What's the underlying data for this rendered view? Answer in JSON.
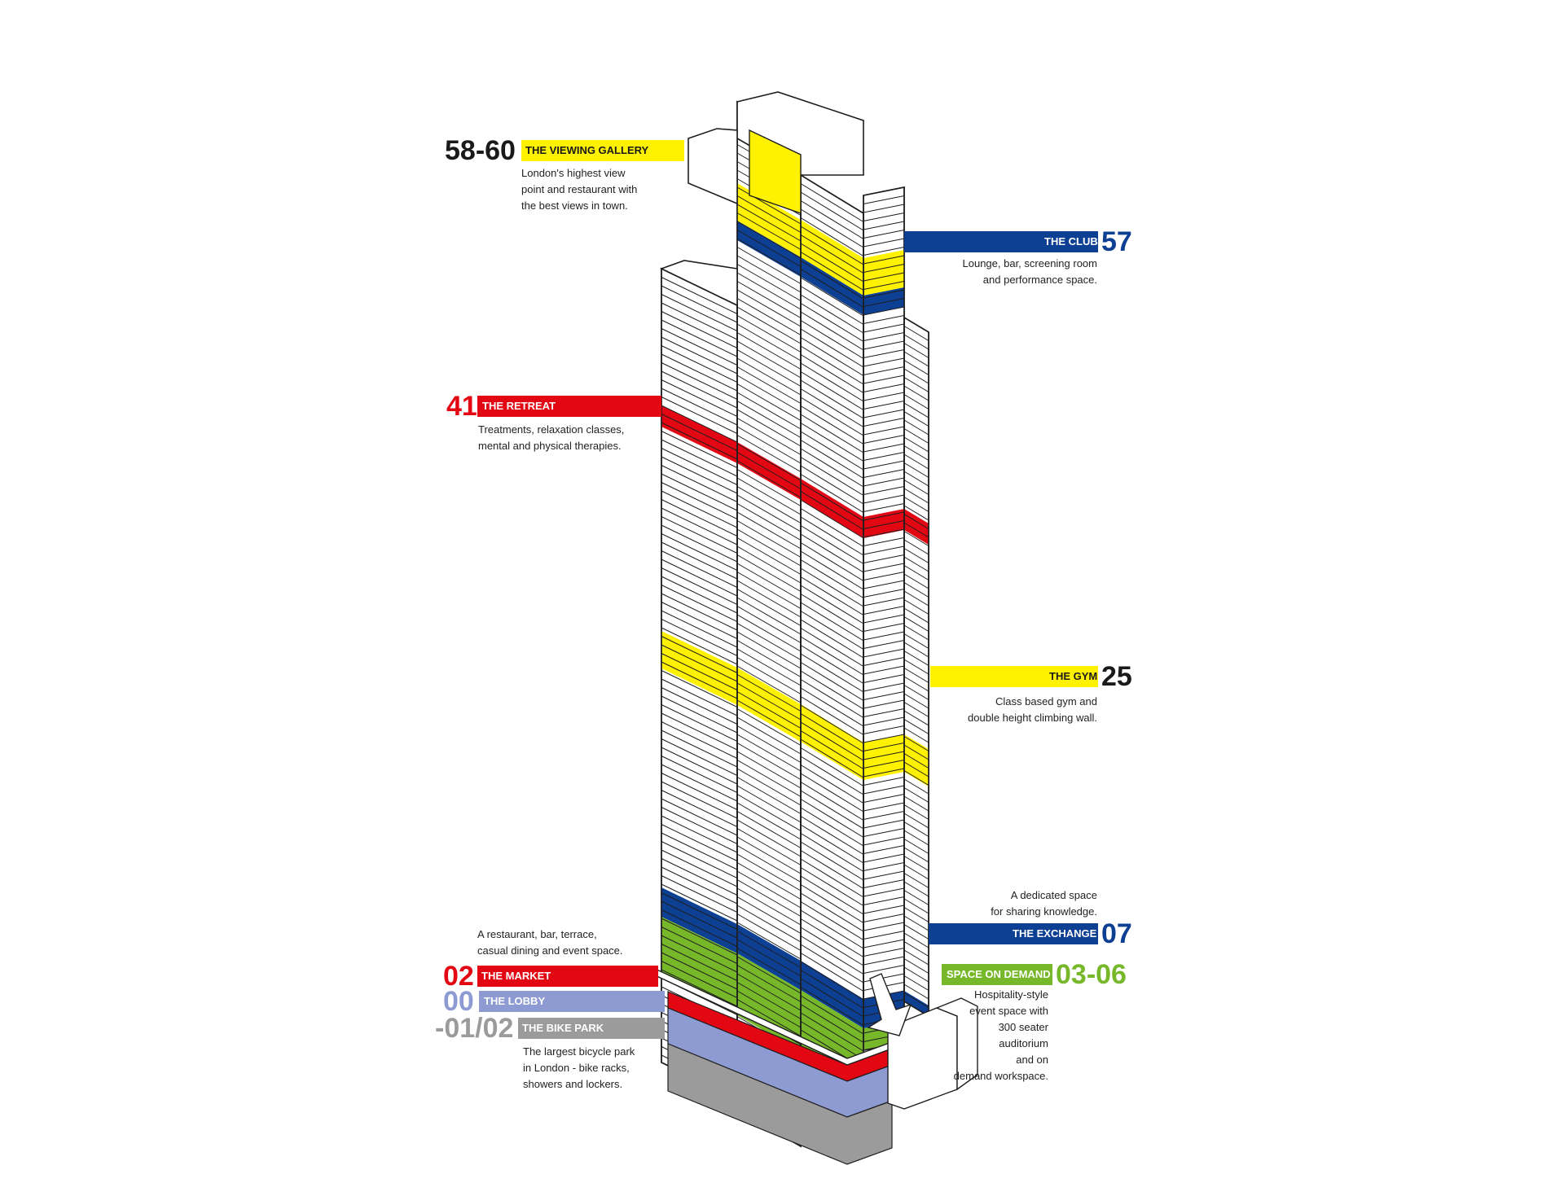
{
  "colors": {
    "yellow": "#fff200",
    "blue": "#0d3f93",
    "red": "#e30613",
    "green": "#76b82a",
    "lavender": "#8d9bd2",
    "grey": "#9b9b9b",
    "black": "#1a1a1a"
  },
  "callouts": {
    "viewing_gallery": {
      "floor": "58-60",
      "name": "THE VIEWING GALLERY",
      "desc": [
        "London's highest view",
        "point and restaurant with",
        "the best views in town."
      ]
    },
    "club": {
      "floor": "57",
      "name": "THE CLUB",
      "desc": [
        "Lounge, bar, screening room",
        "and performance space."
      ]
    },
    "retreat": {
      "floor": "41",
      "name": "THE RETREAT",
      "desc": [
        "Treatments, relaxation classes,",
        "mental and physical therapies."
      ]
    },
    "gym": {
      "floor": "25",
      "name": "THE GYM",
      "desc": [
        "Class based gym and",
        "double height climbing wall."
      ]
    },
    "exchange": {
      "floor": "07",
      "name": "THE EXCHANGE",
      "desc": [
        "A dedicated space",
        "for sharing knowledge."
      ]
    },
    "space_on_demand": {
      "floor": "03-06",
      "name": "SPACE ON DEMAND",
      "desc": [
        "Hospitality-style",
        "event space with",
        "300 seater",
        "auditorium",
        "and on",
        "demand workspace."
      ]
    },
    "market": {
      "floor": "02",
      "name": "THE MARKET",
      "desc": [
        "A restaurant, bar, terrace,",
        "casual dining and event space."
      ]
    },
    "lobby": {
      "floor": "00",
      "name": "THE LOBBY"
    },
    "bike_park": {
      "floor": "-01/02",
      "name": "THE BIKE PARK",
      "desc": [
        "The largest bicycle park",
        "in London - bike racks,",
        "showers and lockers."
      ]
    }
  }
}
